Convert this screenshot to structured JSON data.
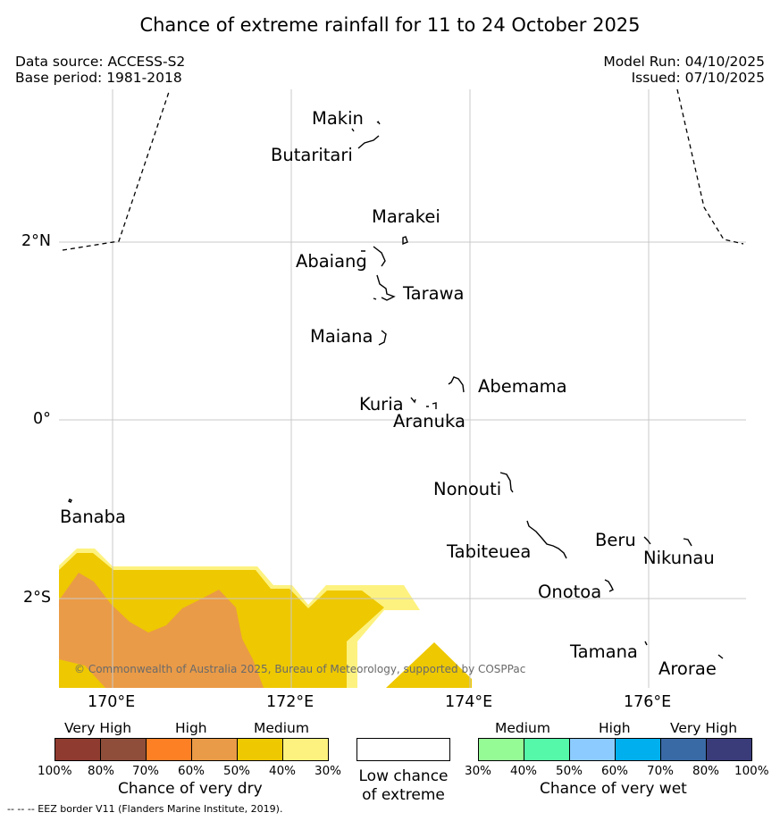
{
  "title": "Chance of extreme rainfall for 11 to 24 October 2025",
  "meta": {
    "data_source": "Data source: ACCESS-S2",
    "base_period": "Base period: 1981-2018",
    "model_run": "Model Run: 04/10/2025",
    "issued": "Issued: 07/10/2025"
  },
  "axes": {
    "lat": [
      {
        "label": "2°N",
        "value": 2
      },
      {
        "label": "0°",
        "value": 0
      },
      {
        "label": "2°S",
        "value": -2
      }
    ],
    "lon": [
      {
        "label": "170°E",
        "value": 170
      },
      {
        "label": "172°E",
        "value": 172
      },
      {
        "label": "174°E",
        "value": 174
      },
      {
        "label": "176°E",
        "value": 176
      }
    ]
  },
  "islands": [
    {
      "name": "Makin"
    },
    {
      "name": "Butaritari"
    },
    {
      "name": "Marakei"
    },
    {
      "name": "Abaiang"
    },
    {
      "name": "Tarawa"
    },
    {
      "name": "Maiana"
    },
    {
      "name": "Abemama"
    },
    {
      "name": "Kuria"
    },
    {
      "name": "Aranuka"
    },
    {
      "name": "Nonouti"
    },
    {
      "name": "Banaba"
    },
    {
      "name": "Tabiteuea"
    },
    {
      "name": "Beru"
    },
    {
      "name": "Nikunau"
    },
    {
      "name": "Onotoa"
    },
    {
      "name": "Tamana"
    },
    {
      "name": "Arorae"
    }
  ],
  "copyright": "© Commonwealth of Australia 2025, Bureau of Meteorology, supported by COSPPac",
  "legend": {
    "dry": {
      "headers": [
        "Very High",
        "High",
        "Medium"
      ],
      "colors": [
        "#8f3b30",
        "#8e4e3a",
        "#fd8025",
        "#ea9b47",
        "#eec800",
        "#fdf27f"
      ],
      "ticks": [
        "100%",
        "80%",
        "70%",
        "60%",
        "50%",
        "40%",
        "30%"
      ],
      "title": "Chance of very dry"
    },
    "low": {
      "title_line1": "Low chance",
      "title_line2": "of extreme",
      "color": "#ffffff"
    },
    "wet": {
      "headers": [
        "Medium",
        "High",
        "Very High"
      ],
      "colors": [
        "#95fc95",
        "#55f8a8",
        "#8ccbff",
        "#00b0ee",
        "#3a6aa6",
        "#3a3c7a"
      ],
      "ticks": [
        "30%",
        "40%",
        "50%",
        "60%",
        "70%",
        "80%",
        "100%"
      ],
      "title": "Chance of very wet"
    }
  },
  "footer": "--  --  -- EEZ border V11 (Flanders Marine Institute, 2019).",
  "map_colors": {
    "medium_dry": "#eec800",
    "high_dry": "#ea9b47",
    "low_medium_dry": "#fdf27f",
    "grid": "#c8c8c8"
  }
}
